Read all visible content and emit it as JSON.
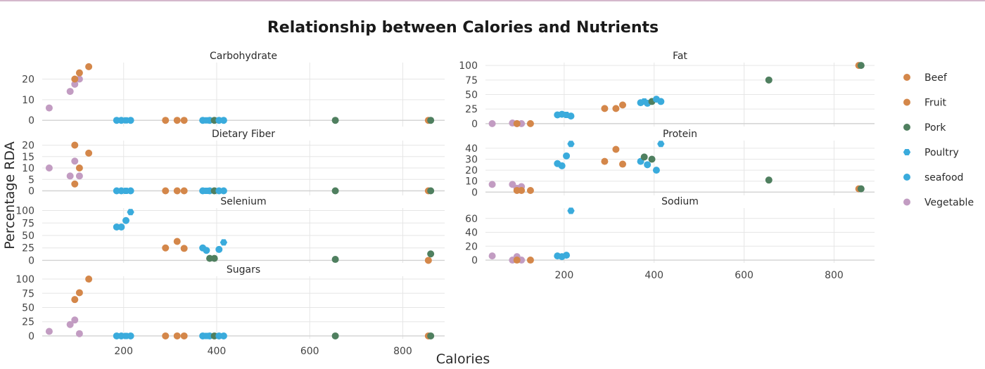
{
  "chart_data": {
    "type": "scatter",
    "title": "Relationship between Calories and Nutrients",
    "xlabel": "Calories",
    "ylabel": "Percentage RDA",
    "xlim": [
      25,
      890
    ],
    "xticks": [
      200,
      400,
      600,
      800
    ],
    "grid": true,
    "legend_position": "right",
    "legend": [
      {
        "name": "Beef",
        "color": "#d4874a",
        "symbol": "circle"
      },
      {
        "name": "Fruit",
        "color": "#d4874a",
        "symbol": "circle"
      },
      {
        "name": "Pork",
        "color": "#4f7f5f",
        "symbol": "circle"
      },
      {
        "name": "Poultry",
        "color": "#3aabdc",
        "symbol": "hexagon"
      },
      {
        "name": "seafood",
        "color": "#3aabdc",
        "symbol": "circle"
      },
      {
        "name": "Vegetable",
        "color": "#c29cc2",
        "symbol": "circle"
      }
    ],
    "panels": [
      {
        "title": "Carbohydrate",
        "ylim": [
          -3,
          28
        ],
        "yticks": [
          0,
          10,
          20
        ],
        "points": [
          {
            "x": 40,
            "y": 6,
            "group": "Vegetable"
          },
          {
            "x": 85,
            "y": 14,
            "group": "Vegetable"
          },
          {
            "x": 95,
            "y": 17.5,
            "group": "Vegetable"
          },
          {
            "x": 105,
            "y": 20,
            "group": "Vegetable"
          },
          {
            "x": 95,
            "y": 20,
            "group": "Fruit"
          },
          {
            "x": 105,
            "y": 23,
            "group": "Fruit"
          },
          {
            "x": 125,
            "y": 26,
            "group": "Fruit"
          },
          {
            "x": 185,
            "y": 0,
            "group": "seafood"
          },
          {
            "x": 195,
            "y": 0,
            "group": "seafood"
          },
          {
            "x": 205,
            "y": 0,
            "group": "Poultry"
          },
          {
            "x": 215,
            "y": 0,
            "group": "seafood"
          },
          {
            "x": 290,
            "y": 0,
            "group": "Beef"
          },
          {
            "x": 315,
            "y": 0,
            "group": "Beef"
          },
          {
            "x": 330,
            "y": 0,
            "group": "Beef"
          },
          {
            "x": 370,
            "y": 0,
            "group": "seafood"
          },
          {
            "x": 378,
            "y": 0,
            "group": "Poultry"
          },
          {
            "x": 385,
            "y": 0,
            "group": "seafood"
          },
          {
            "x": 395,
            "y": 0,
            "group": "Pork"
          },
          {
            "x": 405,
            "y": 0,
            "group": "seafood"
          },
          {
            "x": 415,
            "y": 0,
            "group": "seafood"
          },
          {
            "x": 655,
            "y": 0,
            "group": "Pork"
          },
          {
            "x": 855,
            "y": 0,
            "group": "Beef"
          },
          {
            "x": 860,
            "y": 0,
            "group": "Pork"
          }
        ]
      },
      {
        "title": "Fat",
        "ylim": [
          -5,
          105
        ],
        "yticks": [
          0,
          25,
          50,
          75,
          100
        ],
        "points": [
          {
            "x": 40,
            "y": 0,
            "group": "Vegetable"
          },
          {
            "x": 85,
            "y": 1,
            "group": "Vegetable"
          },
          {
            "x": 95,
            "y": 0,
            "group": "Vegetable"
          },
          {
            "x": 105,
            "y": 0,
            "group": "Vegetable"
          },
          {
            "x": 95,
            "y": 0,
            "group": "Fruit"
          },
          {
            "x": 125,
            "y": 0,
            "group": "Fruit"
          },
          {
            "x": 185,
            "y": 15,
            "group": "seafood"
          },
          {
            "x": 195,
            "y": 16,
            "group": "seafood"
          },
          {
            "x": 205,
            "y": 15,
            "group": "Poultry"
          },
          {
            "x": 215,
            "y": 13,
            "group": "seafood"
          },
          {
            "x": 290,
            "y": 26,
            "group": "Beef"
          },
          {
            "x": 315,
            "y": 26,
            "group": "Beef"
          },
          {
            "x": 330,
            "y": 32,
            "group": "Beef"
          },
          {
            "x": 370,
            "y": 36,
            "group": "seafood"
          },
          {
            "x": 378,
            "y": 38,
            "group": "Poultry"
          },
          {
            "x": 385,
            "y": 35,
            "group": "seafood"
          },
          {
            "x": 395,
            "y": 38,
            "group": "Pork"
          },
          {
            "x": 405,
            "y": 42,
            "group": "seafood"
          },
          {
            "x": 415,
            "y": 38,
            "group": "seafood"
          },
          {
            "x": 655,
            "y": 75,
            "group": "Pork"
          },
          {
            "x": 855,
            "y": 100,
            "group": "Beef"
          },
          {
            "x": 860,
            "y": 100,
            "group": "Pork"
          }
        ]
      },
      {
        "title": "Dietary Fiber",
        "ylim": [
          -2,
          22
        ],
        "yticks": [
          0,
          5,
          10,
          15,
          20
        ],
        "points": [
          {
            "x": 40,
            "y": 10,
            "group": "Vegetable"
          },
          {
            "x": 85,
            "y": 6.5,
            "group": "Vegetable"
          },
          {
            "x": 95,
            "y": 13,
            "group": "Vegetable"
          },
          {
            "x": 105,
            "y": 6.5,
            "group": "Vegetable"
          },
          {
            "x": 95,
            "y": 20,
            "group": "Fruit"
          },
          {
            "x": 95,
            "y": 3,
            "group": "Fruit"
          },
          {
            "x": 105,
            "y": 10,
            "group": "Fruit"
          },
          {
            "x": 125,
            "y": 16.5,
            "group": "Fruit"
          },
          {
            "x": 185,
            "y": 0,
            "group": "seafood"
          },
          {
            "x": 195,
            "y": 0,
            "group": "seafood"
          },
          {
            "x": 205,
            "y": 0,
            "group": "Poultry"
          },
          {
            "x": 215,
            "y": 0,
            "group": "seafood"
          },
          {
            "x": 290,
            "y": 0,
            "group": "Beef"
          },
          {
            "x": 315,
            "y": 0,
            "group": "Beef"
          },
          {
            "x": 330,
            "y": 0,
            "group": "Beef"
          },
          {
            "x": 370,
            "y": 0,
            "group": "seafood"
          },
          {
            "x": 378,
            "y": 0,
            "group": "Poultry"
          },
          {
            "x": 385,
            "y": 0,
            "group": "seafood"
          },
          {
            "x": 395,
            "y": 0,
            "group": "Pork"
          },
          {
            "x": 405,
            "y": 0,
            "group": "seafood"
          },
          {
            "x": 415,
            "y": 0,
            "group": "seafood"
          },
          {
            "x": 655,
            "y": 0,
            "group": "Pork"
          },
          {
            "x": 855,
            "y": 0,
            "group": "Beef"
          },
          {
            "x": 860,
            "y": 0,
            "group": "Pork"
          }
        ]
      },
      {
        "title": "Protein",
        "ylim": [
          -3,
          47
        ],
        "yticks": [
          0,
          10,
          20,
          30,
          40
        ],
        "points": [
          {
            "x": 40,
            "y": 7,
            "group": "Vegetable"
          },
          {
            "x": 85,
            "y": 7,
            "group": "Vegetable"
          },
          {
            "x": 95,
            "y": 3.5,
            "group": "Vegetable"
          },
          {
            "x": 105,
            "y": 5,
            "group": "Vegetable"
          },
          {
            "x": 95,
            "y": 1.5,
            "group": "Fruit"
          },
          {
            "x": 105,
            "y": 1.5,
            "group": "Fruit"
          },
          {
            "x": 125,
            "y": 1.5,
            "group": "Fruit"
          },
          {
            "x": 185,
            "y": 26,
            "group": "seafood"
          },
          {
            "x": 195,
            "y": 24,
            "group": "seafood"
          },
          {
            "x": 205,
            "y": 33,
            "group": "seafood"
          },
          {
            "x": 215,
            "y": 44,
            "group": "Poultry"
          },
          {
            "x": 290,
            "y": 28,
            "group": "Beef"
          },
          {
            "x": 315,
            "y": 39,
            "group": "Beef"
          },
          {
            "x": 330,
            "y": 25.5,
            "group": "Beef"
          },
          {
            "x": 370,
            "y": 28,
            "group": "seafood"
          },
          {
            "x": 378,
            "y": 32,
            "group": "Pork"
          },
          {
            "x": 385,
            "y": 25,
            "group": "seafood"
          },
          {
            "x": 395,
            "y": 30,
            "group": "Pork"
          },
          {
            "x": 405,
            "y": 20,
            "group": "seafood"
          },
          {
            "x": 415,
            "y": 44,
            "group": "Poultry"
          },
          {
            "x": 655,
            "y": 11,
            "group": "Pork"
          },
          {
            "x": 855,
            "y": 3,
            "group": "Beef"
          },
          {
            "x": 860,
            "y": 3,
            "group": "Pork"
          }
        ]
      },
      {
        "title": "Selenium",
        "ylim": [
          -5,
          105
        ],
        "yticks": [
          0,
          25,
          50,
          75,
          100
        ],
        "points": [
          {
            "x": 185,
            "y": 67,
            "group": "seafood"
          },
          {
            "x": 195,
            "y": 67,
            "group": "seafood"
          },
          {
            "x": 205,
            "y": 80,
            "group": "seafood"
          },
          {
            "x": 215,
            "y": 97,
            "group": "Poultry"
          },
          {
            "x": 290,
            "y": 25,
            "group": "Beef"
          },
          {
            "x": 315,
            "y": 38,
            "group": "Beef"
          },
          {
            "x": 330,
            "y": 24,
            "group": "Beef"
          },
          {
            "x": 370,
            "y": 25,
            "group": "seafood"
          },
          {
            "x": 378,
            "y": 20,
            "group": "seafood"
          },
          {
            "x": 385,
            "y": 4,
            "group": "Pork"
          },
          {
            "x": 395,
            "y": 4,
            "group": "Pork"
          },
          {
            "x": 405,
            "y": 22,
            "group": "seafood"
          },
          {
            "x": 415,
            "y": 36,
            "group": "Poultry"
          },
          {
            "x": 655,
            "y": 2,
            "group": "Pork"
          },
          {
            "x": 855,
            "y": 0,
            "group": "Beef"
          },
          {
            "x": 860,
            "y": 13,
            "group": "Pork"
          }
        ]
      },
      {
        "title": "Sodium",
        "ylim": [
          -4,
          75
        ],
        "yticks": [
          0,
          20,
          40,
          60
        ],
        "points": [
          {
            "x": 40,
            "y": 6,
            "group": "Vegetable"
          },
          {
            "x": 85,
            "y": 0,
            "group": "Vegetable"
          },
          {
            "x": 95,
            "y": 5,
            "group": "Vegetable"
          },
          {
            "x": 105,
            "y": 0,
            "group": "Vegetable"
          },
          {
            "x": 95,
            "y": 0,
            "group": "Fruit"
          },
          {
            "x": 125,
            "y": 0,
            "group": "Fruit"
          },
          {
            "x": 185,
            "y": 6,
            "group": "seafood"
          },
          {
            "x": 195,
            "y": 5,
            "group": "seafood"
          },
          {
            "x": 205,
            "y": 7,
            "group": "seafood"
          },
          {
            "x": 215,
            "y": 71,
            "group": "Poultry"
          }
        ]
      },
      {
        "title": "Sugars",
        "ylim": [
          -5,
          105
        ],
        "yticks": [
          0,
          25,
          50,
          75,
          100
        ],
        "points": [
          {
            "x": 40,
            "y": 8,
            "group": "Vegetable"
          },
          {
            "x": 85,
            "y": 20,
            "group": "Vegetable"
          },
          {
            "x": 95,
            "y": 28,
            "group": "Vegetable"
          },
          {
            "x": 105,
            "y": 4,
            "group": "Vegetable"
          },
          {
            "x": 95,
            "y": 64,
            "group": "Fruit"
          },
          {
            "x": 105,
            "y": 76,
            "group": "Fruit"
          },
          {
            "x": 125,
            "y": 100,
            "group": "Fruit"
          },
          {
            "x": 185,
            "y": 0,
            "group": "seafood"
          },
          {
            "x": 195,
            "y": 0,
            "group": "seafood"
          },
          {
            "x": 205,
            "y": 0,
            "group": "Poultry"
          },
          {
            "x": 215,
            "y": 0,
            "group": "seafood"
          },
          {
            "x": 290,
            "y": 0,
            "group": "Beef"
          },
          {
            "x": 315,
            "y": 0,
            "group": "Beef"
          },
          {
            "x": 330,
            "y": 0,
            "group": "Beef"
          },
          {
            "x": 370,
            "y": 0,
            "group": "seafood"
          },
          {
            "x": 378,
            "y": 0,
            "group": "Poultry"
          },
          {
            "x": 385,
            "y": 0,
            "group": "seafood"
          },
          {
            "x": 395,
            "y": 0,
            "group": "Pork"
          },
          {
            "x": 405,
            "y": 0,
            "group": "seafood"
          },
          {
            "x": 415,
            "y": 0,
            "group": "seafood"
          },
          {
            "x": 655,
            "y": 0,
            "group": "Pork"
          },
          {
            "x": 855,
            "y": 0,
            "group": "Beef"
          },
          {
            "x": 860,
            "y": 0,
            "group": "Pork"
          }
        ]
      }
    ]
  }
}
